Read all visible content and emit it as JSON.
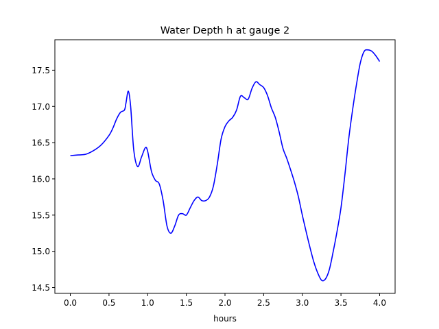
{
  "chart_data": {
    "type": "line",
    "title": "Water Depth h at gauge 2",
    "xlabel": "hours",
    "ylabel": "",
    "xlim": [
      -0.2,
      4.2
    ],
    "ylim": [
      14.42,
      17.92
    ],
    "xticks": [
      0.0,
      0.5,
      1.0,
      1.5,
      2.0,
      2.5,
      3.0,
      3.5,
      4.0
    ],
    "xtick_labels": [
      "0.0",
      "0.5",
      "1.0",
      "1.5",
      "2.0",
      "2.5",
      "3.0",
      "3.5",
      "4.0"
    ],
    "yticks": [
      14.5,
      15.0,
      15.5,
      16.0,
      16.5,
      17.0,
      17.5
    ],
    "ytick_labels": [
      "14.5",
      "15.0",
      "15.5",
      "16.0",
      "16.5",
      "17.0",
      "17.5"
    ],
    "grid": false,
    "series": [
      {
        "color": "#0000ff",
        "x": [
          0.0,
          0.1,
          0.2,
          0.3,
          0.4,
          0.5,
          0.55,
          0.6,
          0.65,
          0.7,
          0.72,
          0.75,
          0.78,
          0.82,
          0.87,
          0.92,
          0.97,
          1.0,
          1.05,
          1.1,
          1.15,
          1.2,
          1.25,
          1.3,
          1.35,
          1.4,
          1.45,
          1.5,
          1.55,
          1.6,
          1.65,
          1.7,
          1.75,
          1.8,
          1.85,
          1.9,
          1.95,
          2.0,
          2.05,
          2.1,
          2.15,
          2.2,
          2.25,
          2.3,
          2.35,
          2.4,
          2.45,
          2.5,
          2.55,
          2.6,
          2.65,
          2.7,
          2.75,
          2.8,
          2.85,
          2.9,
          2.95,
          3.0,
          3.05,
          3.1,
          3.15,
          3.2,
          3.25,
          3.3,
          3.35,
          3.4,
          3.45,
          3.5,
          3.55,
          3.6,
          3.65,
          3.7,
          3.75,
          3.8,
          3.85,
          3.9,
          3.95,
          4.0
        ],
        "y": [
          16.32,
          16.33,
          16.34,
          16.39,
          16.47,
          16.6,
          16.7,
          16.83,
          16.92,
          16.95,
          17.05,
          17.21,
          17.0,
          16.4,
          16.17,
          16.3,
          16.43,
          16.38,
          16.1,
          15.98,
          15.93,
          15.7,
          15.35,
          15.25,
          15.35,
          15.5,
          15.52,
          15.5,
          15.6,
          15.7,
          15.75,
          15.7,
          15.7,
          15.75,
          15.9,
          16.2,
          16.55,
          16.72,
          16.8,
          16.85,
          16.95,
          17.14,
          17.12,
          17.1,
          17.25,
          17.34,
          17.3,
          17.26,
          17.15,
          16.98,
          16.85,
          16.65,
          16.42,
          16.28,
          16.12,
          15.95,
          15.75,
          15.5,
          15.27,
          15.05,
          14.85,
          14.7,
          14.6,
          14.62,
          14.75,
          15.0,
          15.28,
          15.6,
          16.05,
          16.55,
          16.95,
          17.3,
          17.6,
          17.76,
          17.78,
          17.76,
          17.7,
          17.62
        ]
      }
    ]
  }
}
